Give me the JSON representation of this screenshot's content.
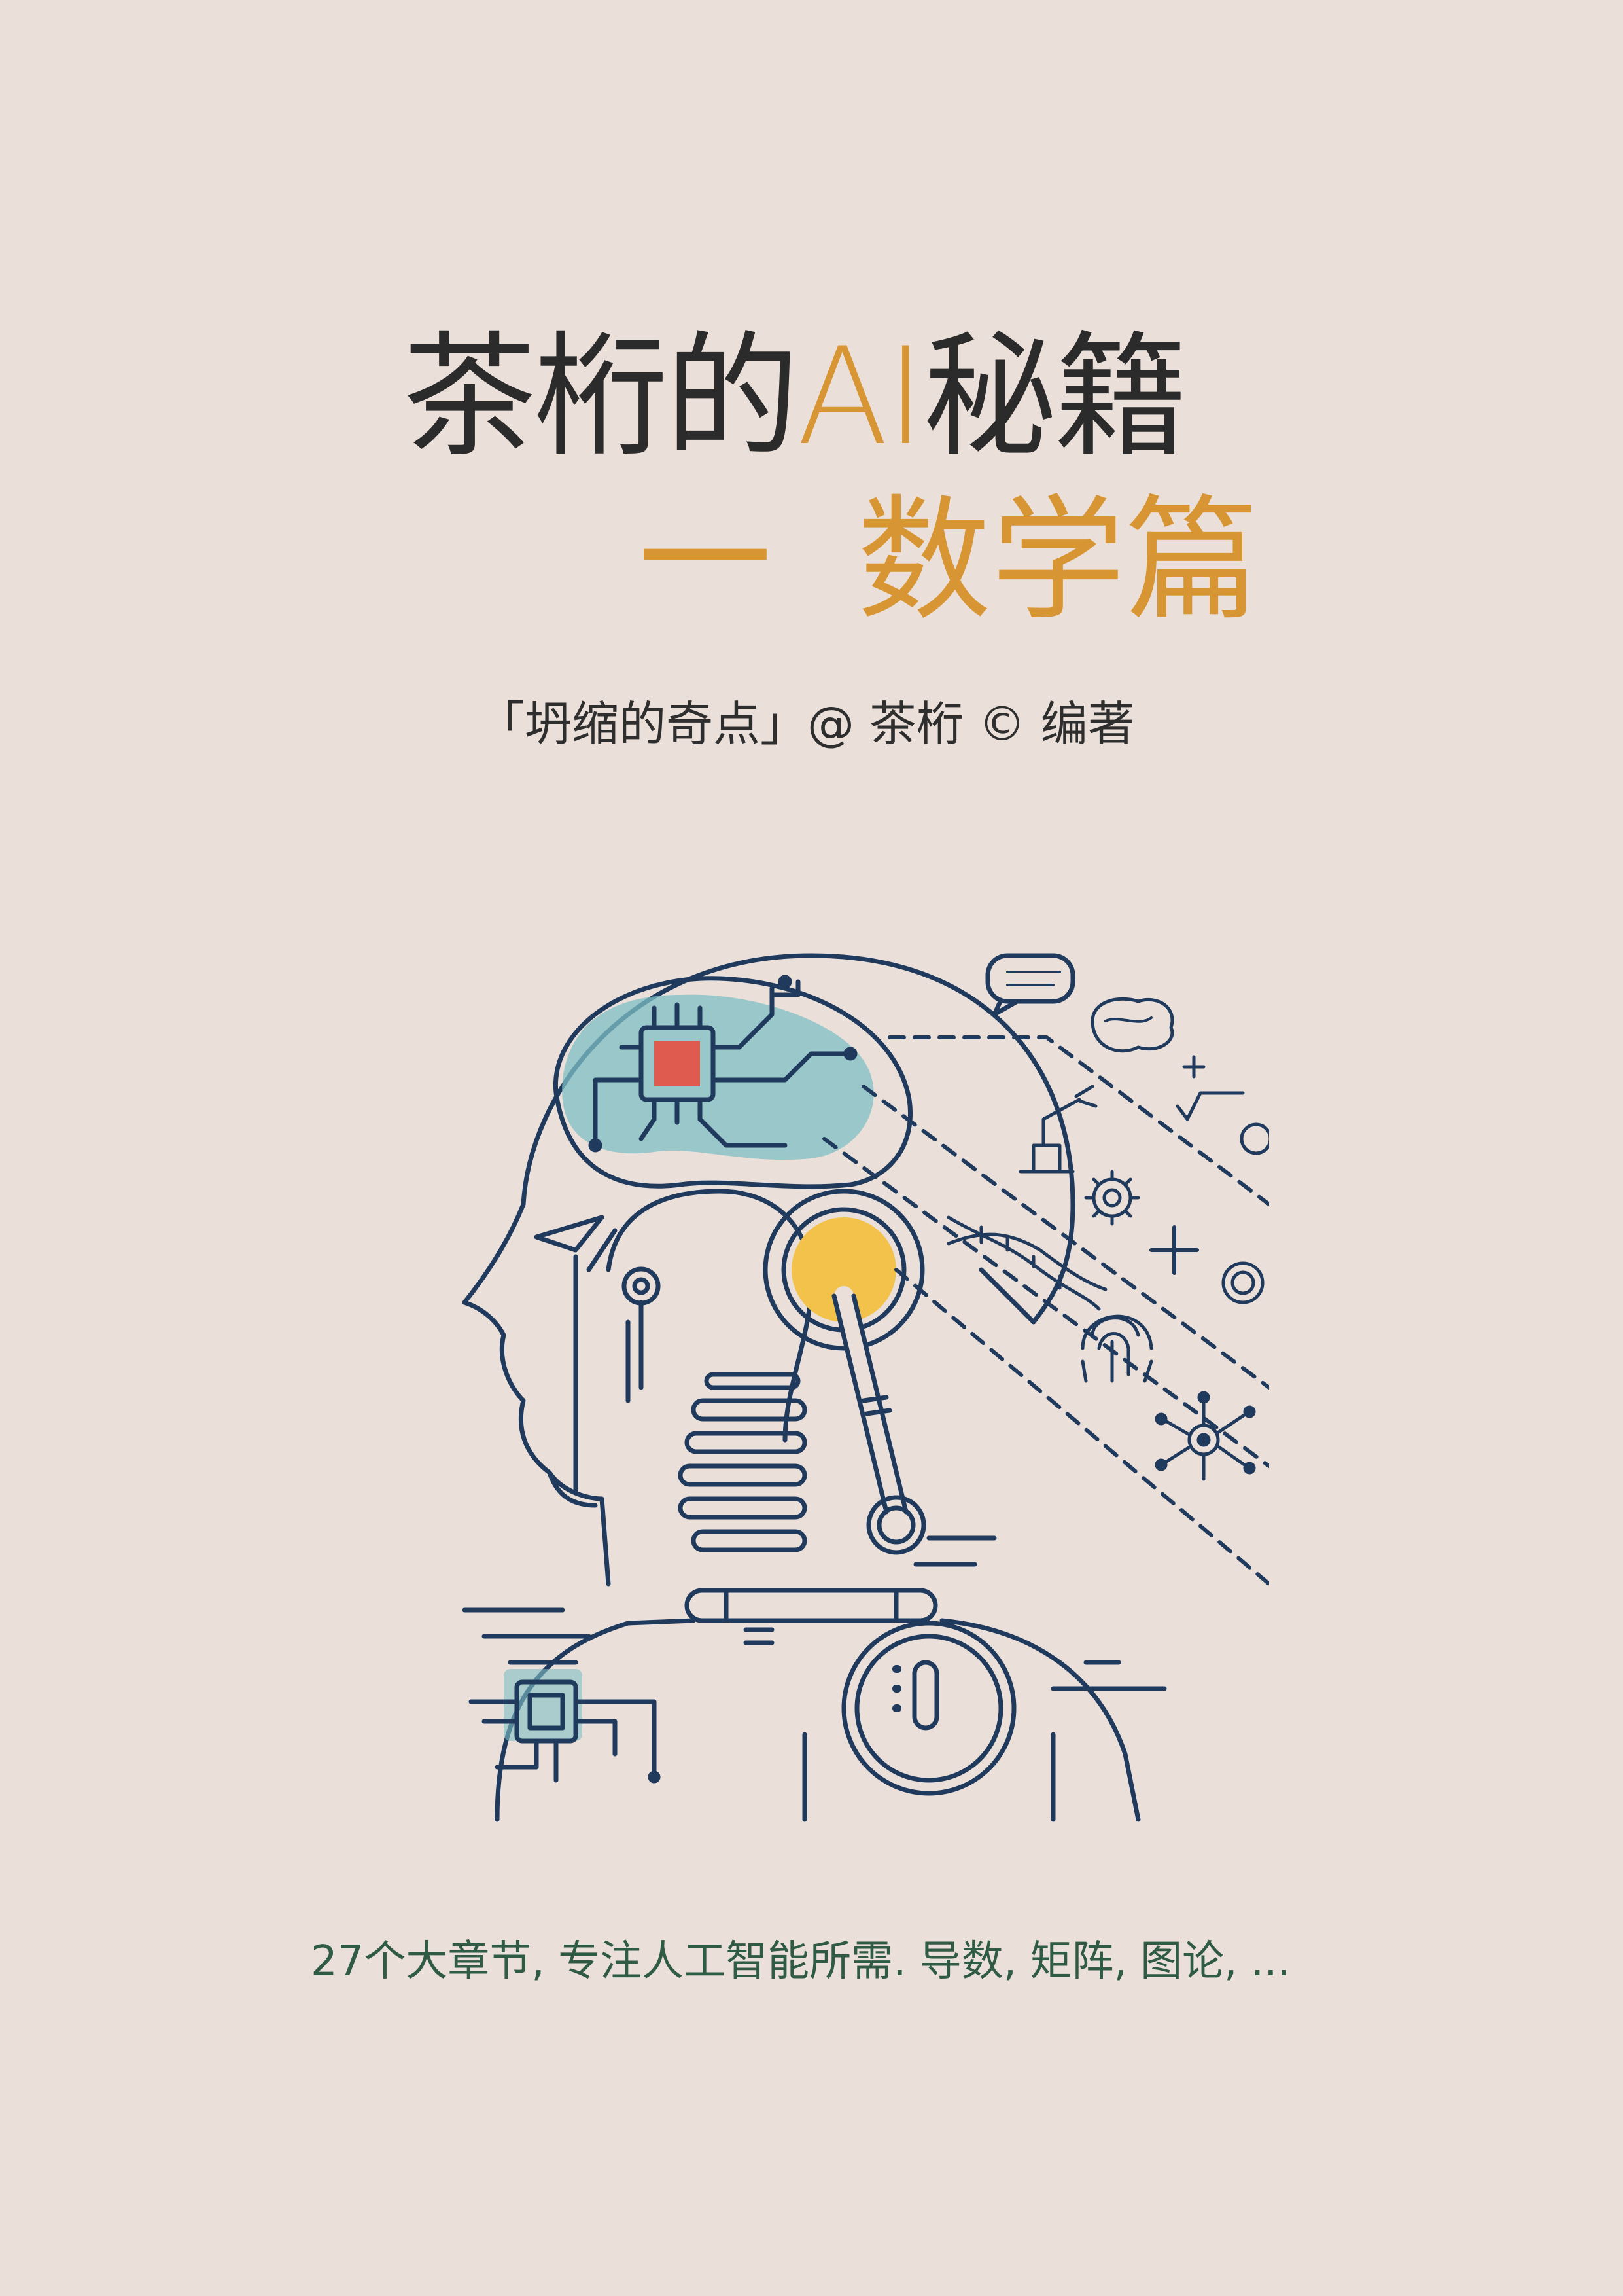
{
  "cover": {
    "title_main_prefix": "茶桁的",
    "title_main_ai": "AI",
    "title_main_suffix": "秘籍",
    "title_sub_dash": "一",
    "title_sub_text": "数学篇",
    "author_line": "「坍缩的奇点」@ 茶桁 © 编著",
    "tagline": "27个大章节, 专注人工智能所需. 导数, 矩阵, 图论, ..."
  },
  "colors": {
    "background": "#ebdfd9",
    "title_dark": "#2b2b2b",
    "accent_orange": "#d79633",
    "line_navy": "#1f3a5c",
    "teal": "#7fbfc4",
    "chip_red": "#e05b4f",
    "sun_yellow": "#f2c24b",
    "tagline_green": "#2f5a43"
  },
  "illustration": {
    "icons": [
      "robot-head-icon",
      "brain-circuit-icon",
      "chip-icon",
      "speech-bubble-icon",
      "brain-icon",
      "robot-arm-icon",
      "gear-icon",
      "dna-icon",
      "fingerprint-icon",
      "network-icon",
      "plus-icon",
      "target-icon"
    ]
  }
}
